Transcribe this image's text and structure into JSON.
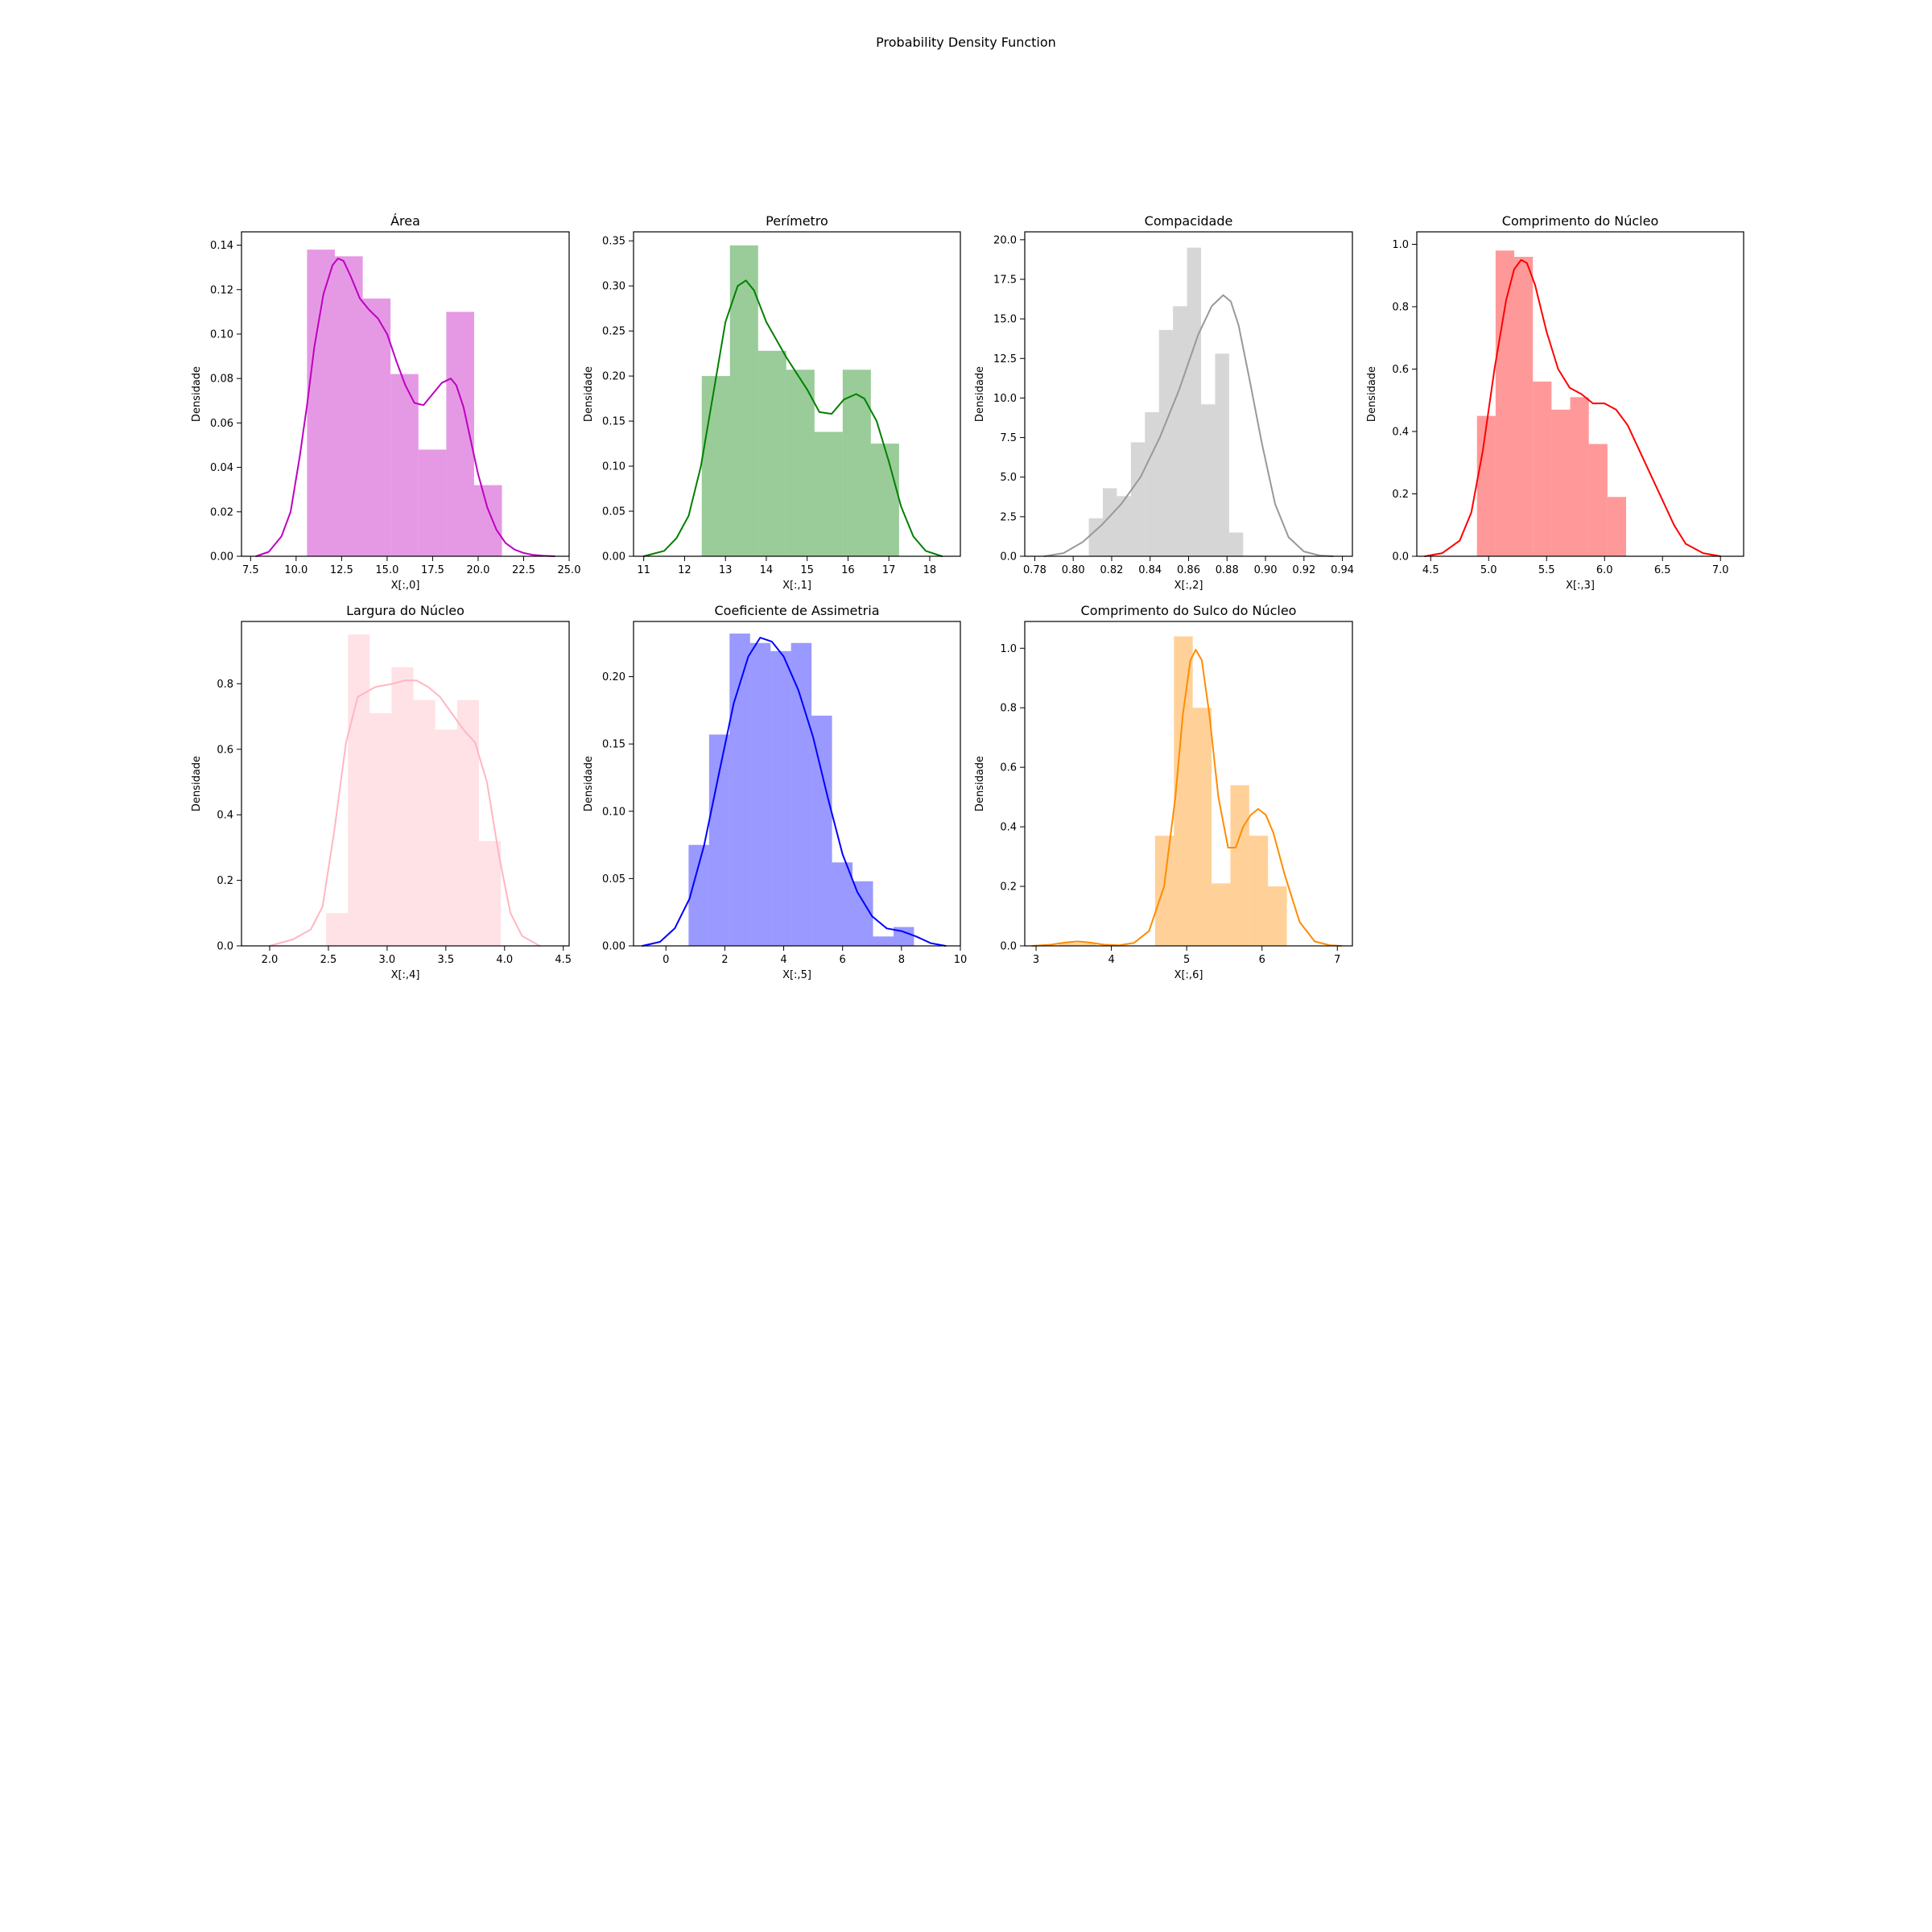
{
  "figure": {
    "title": "Probability Density Function"
  },
  "chart_data": [
    {
      "type": "bar",
      "title": "Área",
      "xlabel": "X[:,0]",
      "ylabel": "Densidade",
      "color": "#bf00bf",
      "xlim": [
        7.0,
        25.0
      ],
      "ylim": [
        0,
        0.146
      ],
      "xticks": [
        7.5,
        10.0,
        12.5,
        15.0,
        17.5,
        20.0,
        22.5,
        25.0
      ],
      "yticks": [
        0.0,
        0.02,
        0.04,
        0.06,
        0.08,
        0.1,
        0.12,
        0.14
      ],
      "xtick_labels": [
        "7.5",
        "10.0",
        "12.5",
        "15.0",
        "17.5",
        "20.0",
        "22.5",
        "25.0"
      ],
      "ytick_labels": [
        "0.00",
        "0.02",
        "0.04",
        "0.06",
        "0.08",
        "0.10",
        "0.12",
        "0.14"
      ],
      "bins": {
        "start": 10.6,
        "width": 1.53,
        "values": [
          0.138,
          0.135,
          0.116,
          0.082,
          0.048,
          0.11,
          0.032
        ]
      },
      "kde": {
        "x": [
          7.8,
          8.5,
          9.2,
          9.7,
          10.2,
          10.6,
          11.0,
          11.5,
          12.0,
          12.3,
          12.6,
          13.0,
          13.5,
          14.0,
          14.5,
          15.0,
          15.5,
          16.0,
          16.5,
          17.0,
          17.5,
          18.0,
          18.5,
          18.8,
          19.2,
          19.6,
          20.0,
          20.5,
          21.0,
          21.5,
          22.0,
          22.5,
          23.0,
          23.6,
          24.2
        ],
        "y": [
          0.0,
          0.002,
          0.009,
          0.02,
          0.045,
          0.068,
          0.094,
          0.118,
          0.131,
          0.134,
          0.133,
          0.126,
          0.116,
          0.111,
          0.107,
          0.1,
          0.088,
          0.077,
          0.069,
          0.068,
          0.073,
          0.078,
          0.08,
          0.077,
          0.067,
          0.052,
          0.037,
          0.022,
          0.012,
          0.006,
          0.003,
          0.0015,
          0.0006,
          0.0002,
          0.0
        ]
      }
    },
    {
      "type": "bar",
      "title": "Perímetro",
      "xlabel": "X[:,1]",
      "ylabel": "Densidade",
      "color": "#008000",
      "xlim": [
        10.75,
        18.75
      ],
      "ylim": [
        0,
        0.36
      ],
      "xticks": [
        11,
        12,
        13,
        14,
        15,
        16,
        17,
        18
      ],
      "yticks": [
        0.0,
        0.05,
        0.1,
        0.15,
        0.2,
        0.25,
        0.3,
        0.35
      ],
      "xtick_labels": [
        "11",
        "12",
        "13",
        "14",
        "15",
        "16",
        "17",
        "18"
      ],
      "ytick_labels": [
        "0.00",
        "0.05",
        "0.10",
        "0.15",
        "0.20",
        "0.25",
        "0.30",
        "0.35"
      ],
      "bins": {
        "start": 12.42,
        "width": 0.69,
        "values": [
          0.2,
          0.345,
          0.228,
          0.207,
          0.138,
          0.207,
          0.125
        ]
      },
      "kde": {
        "x": [
          11.0,
          11.5,
          11.8,
          12.1,
          12.4,
          12.7,
          13.0,
          13.3,
          13.5,
          13.7,
          14.0,
          14.5,
          15.0,
          15.3,
          15.6,
          15.9,
          16.2,
          16.4,
          16.7,
          17.0,
          17.3,
          17.6,
          17.9,
          18.3
        ],
        "y": [
          0.0,
          0.006,
          0.02,
          0.045,
          0.1,
          0.18,
          0.26,
          0.3,
          0.306,
          0.295,
          0.26,
          0.22,
          0.185,
          0.16,
          0.158,
          0.174,
          0.18,
          0.175,
          0.15,
          0.105,
          0.055,
          0.022,
          0.006,
          0.0
        ]
      }
    },
    {
      "type": "bar",
      "title": "Compacidade",
      "xlabel": "X[:,2]",
      "ylabel": "Densidade",
      "color": "#999999",
      "xlim": [
        0.7748,
        0.9452
      ],
      "ylim": [
        0,
        20.5
      ],
      "xticks": [
        0.78,
        0.8,
        0.82,
        0.84,
        0.86,
        0.88,
        0.9,
        0.92,
        0.94
      ],
      "yticks": [
        0.0,
        2.5,
        5.0,
        7.5,
        10.0,
        12.5,
        15.0,
        17.5,
        20.0
      ],
      "xtick_labels": [
        "0.78",
        "0.80",
        "0.82",
        "0.84",
        "0.86",
        "0.88",
        "0.90",
        "0.92",
        "0.94"
      ],
      "ytick_labels": [
        "0.0",
        "2.5",
        "5.0",
        "7.5",
        "10.0",
        "12.5",
        "15.0",
        "17.5",
        "20.0"
      ],
      "bins": {
        "start": 0.8081,
        "width": 0.0073,
        "values": [
          2.4,
          4.3,
          3.8,
          7.2,
          9.1,
          14.3,
          15.8,
          19.5,
          9.6,
          12.8,
          1.5
        ]
      },
      "kde": {
        "x": [
          0.785,
          0.795,
          0.805,
          0.815,
          0.825,
          0.835,
          0.845,
          0.855,
          0.865,
          0.872,
          0.878,
          0.882,
          0.886,
          0.892,
          0.898,
          0.905,
          0.912,
          0.92,
          0.928,
          0.935
        ],
        "y": [
          0.0,
          0.2,
          0.9,
          2.0,
          3.3,
          5.0,
          7.5,
          10.5,
          14.0,
          15.8,
          16.5,
          16.1,
          14.6,
          11.0,
          7.2,
          3.3,
          1.2,
          0.3,
          0.05,
          0.0
        ]
      }
    },
    {
      "type": "bar",
      "title": "Comprimento do Núcleo",
      "xlabel": "X[:,3]",
      "ylabel": "Densidade",
      "color": "#ff0000",
      "xlim": [
        4.38,
        7.2
      ],
      "ylim": [
        0,
        1.04
      ],
      "xticks": [
        4.5,
        5.0,
        5.5,
        6.0,
        6.5,
        7.0
      ],
      "yticks": [
        0.0,
        0.2,
        0.4,
        0.6,
        0.8,
        1.0
      ],
      "xtick_labels": [
        "4.5",
        "5.0",
        "5.5",
        "6.0",
        "6.5",
        "7.0"
      ],
      "ytick_labels": [
        "0.0",
        "0.2",
        "0.4",
        "0.6",
        "0.8",
        "1.0"
      ],
      "bins": {
        "start": 4.899,
        "width": 0.1609,
        "values": [
          0.45,
          0.98,
          0.96,
          0.56,
          0.47,
          0.51,
          0.36,
          0.19
        ]
      },
      "kde": {
        "x": [
          4.45,
          4.6,
          4.75,
          4.85,
          4.95,
          5.05,
          5.15,
          5.22,
          5.28,
          5.33,
          5.4,
          5.5,
          5.6,
          5.7,
          5.8,
          5.9,
          6.0,
          6.1,
          6.2,
          6.3,
          6.4,
          6.5,
          6.6,
          6.7,
          6.85,
          7.0
        ],
        "y": [
          0.0,
          0.01,
          0.05,
          0.14,
          0.34,
          0.6,
          0.82,
          0.92,
          0.95,
          0.94,
          0.87,
          0.72,
          0.6,
          0.54,
          0.52,
          0.49,
          0.49,
          0.47,
          0.42,
          0.34,
          0.26,
          0.18,
          0.1,
          0.04,
          0.01,
          0.0
        ]
      }
    },
    {
      "type": "bar",
      "title": "Largura do Núcleo",
      "xlabel": "X[:,4]",
      "ylabel": "Densidade",
      "color": "#ffb6c1",
      "xlim": [
        1.76,
        4.55
      ],
      "ylim": [
        0,
        0.99
      ],
      "xticks": [
        2.0,
        2.5,
        3.0,
        3.5,
        4.0,
        4.5
      ],
      "yticks": [
        0.0,
        0.2,
        0.4,
        0.6,
        0.8
      ],
      "xtick_labels": [
        "2.0",
        "2.5",
        "3.0",
        "3.5",
        "4.0",
        "4.5"
      ],
      "ytick_labels": [
        "0.0",
        "0.2",
        "0.4",
        "0.6",
        "0.8"
      ],
      "bins": {
        "start": 2.48,
        "width": 0.186,
        "values": [
          0.1,
          0.95,
          0.71,
          0.85,
          0.75,
          0.66,
          0.75,
          0.32
        ]
      },
      "kde": {
        "x": [
          2.0,
          2.2,
          2.35,
          2.45,
          2.55,
          2.65,
          2.75,
          2.9,
          3.05,
          3.15,
          3.25,
          3.35,
          3.45,
          3.55,
          3.65,
          3.75,
          3.85,
          3.95,
          4.05,
          4.15,
          4.3
        ],
        "y": [
          0.0,
          0.02,
          0.05,
          0.12,
          0.35,
          0.62,
          0.76,
          0.79,
          0.8,
          0.81,
          0.81,
          0.79,
          0.76,
          0.71,
          0.66,
          0.62,
          0.5,
          0.28,
          0.1,
          0.03,
          0.0
        ]
      }
    },
    {
      "type": "bar",
      "title": "Coeficiente de Assimetria",
      "xlabel": "X[:,5]",
      "ylabel": "Densidade",
      "color": "#0000ff",
      "xlim": [
        -1.1,
        10.0
      ],
      "ylim": [
        0,
        0.241
      ],
      "xticks": [
        0,
        2,
        4,
        6,
        8,
        10
      ],
      "yticks": [
        0.0,
        0.05,
        0.1,
        0.15,
        0.2
      ],
      "xtick_labels": [
        "0",
        "2",
        "4",
        "6",
        "8",
        "10"
      ],
      "ytick_labels": [
        "0.00",
        "0.05",
        "0.10",
        "0.15",
        "0.20"
      ],
      "bins": {
        "start": 0.77,
        "width": 0.696,
        "values": [
          0.075,
          0.157,
          0.232,
          0.225,
          0.219,
          0.225,
          0.171,
          0.062,
          0.048,
          0.007,
          0.014
        ]
      },
      "kde": {
        "x": [
          -0.8,
          -0.2,
          0.3,
          0.8,
          1.3,
          1.8,
          2.3,
          2.8,
          3.2,
          3.6,
          4.0,
          4.5,
          5.0,
          5.5,
          6.0,
          6.5,
          7.0,
          7.5,
          8.0,
          8.5,
          9.0,
          9.5
        ],
        "y": [
          0.0,
          0.003,
          0.013,
          0.035,
          0.075,
          0.128,
          0.18,
          0.215,
          0.229,
          0.226,
          0.215,
          0.19,
          0.155,
          0.11,
          0.068,
          0.04,
          0.022,
          0.013,
          0.011,
          0.007,
          0.002,
          0.0
        ]
      }
    },
    {
      "type": "bar",
      "title": "Comprimento do Sulco do Núcleo",
      "xlabel": "X[:,6]",
      "ylabel": "Densidade",
      "color": "#ff8c00",
      "xlim": [
        2.85,
        7.2
      ],
      "ylim": [
        0,
        1.09
      ],
      "xticks": [
        3,
        4,
        5,
        6,
        7
      ],
      "yticks": [
        0.0,
        0.2,
        0.4,
        0.6,
        0.8,
        1.0
      ],
      "xtick_labels": [
        "3",
        "4",
        "5",
        "6",
        "7"
      ],
      "ytick_labels": [
        "0.0",
        "0.2",
        "0.4",
        "0.6",
        "0.8",
        "1.0"
      ],
      "side_bins": {
        "start": 3.3,
        "width": 0.49,
        "values": [
          0.01
        ]
      },
      "bins": {
        "start": 4.58,
        "width": 0.25,
        "values": [
          0.37,
          1.04,
          0.8,
          0.21,
          0.54,
          0.37,
          0.2
        ]
      },
      "kde": {
        "x": [
          2.95,
          3.2,
          3.4,
          3.55,
          3.7,
          3.9,
          4.1,
          4.3,
          4.5,
          4.7,
          4.85,
          4.95,
          5.05,
          5.12,
          5.2,
          5.3,
          5.42,
          5.55,
          5.65,
          5.75,
          5.85,
          5.95,
          6.05,
          6.15,
          6.3,
          6.5,
          6.7,
          6.9,
          7.05
        ],
        "y": [
          0.0,
          0.004,
          0.012,
          0.015,
          0.012,
          0.004,
          0.002,
          0.01,
          0.05,
          0.2,
          0.5,
          0.78,
          0.96,
          0.995,
          0.96,
          0.78,
          0.5,
          0.33,
          0.33,
          0.4,
          0.44,
          0.46,
          0.44,
          0.38,
          0.24,
          0.08,
          0.015,
          0.002,
          0.0
        ]
      }
    }
  ]
}
